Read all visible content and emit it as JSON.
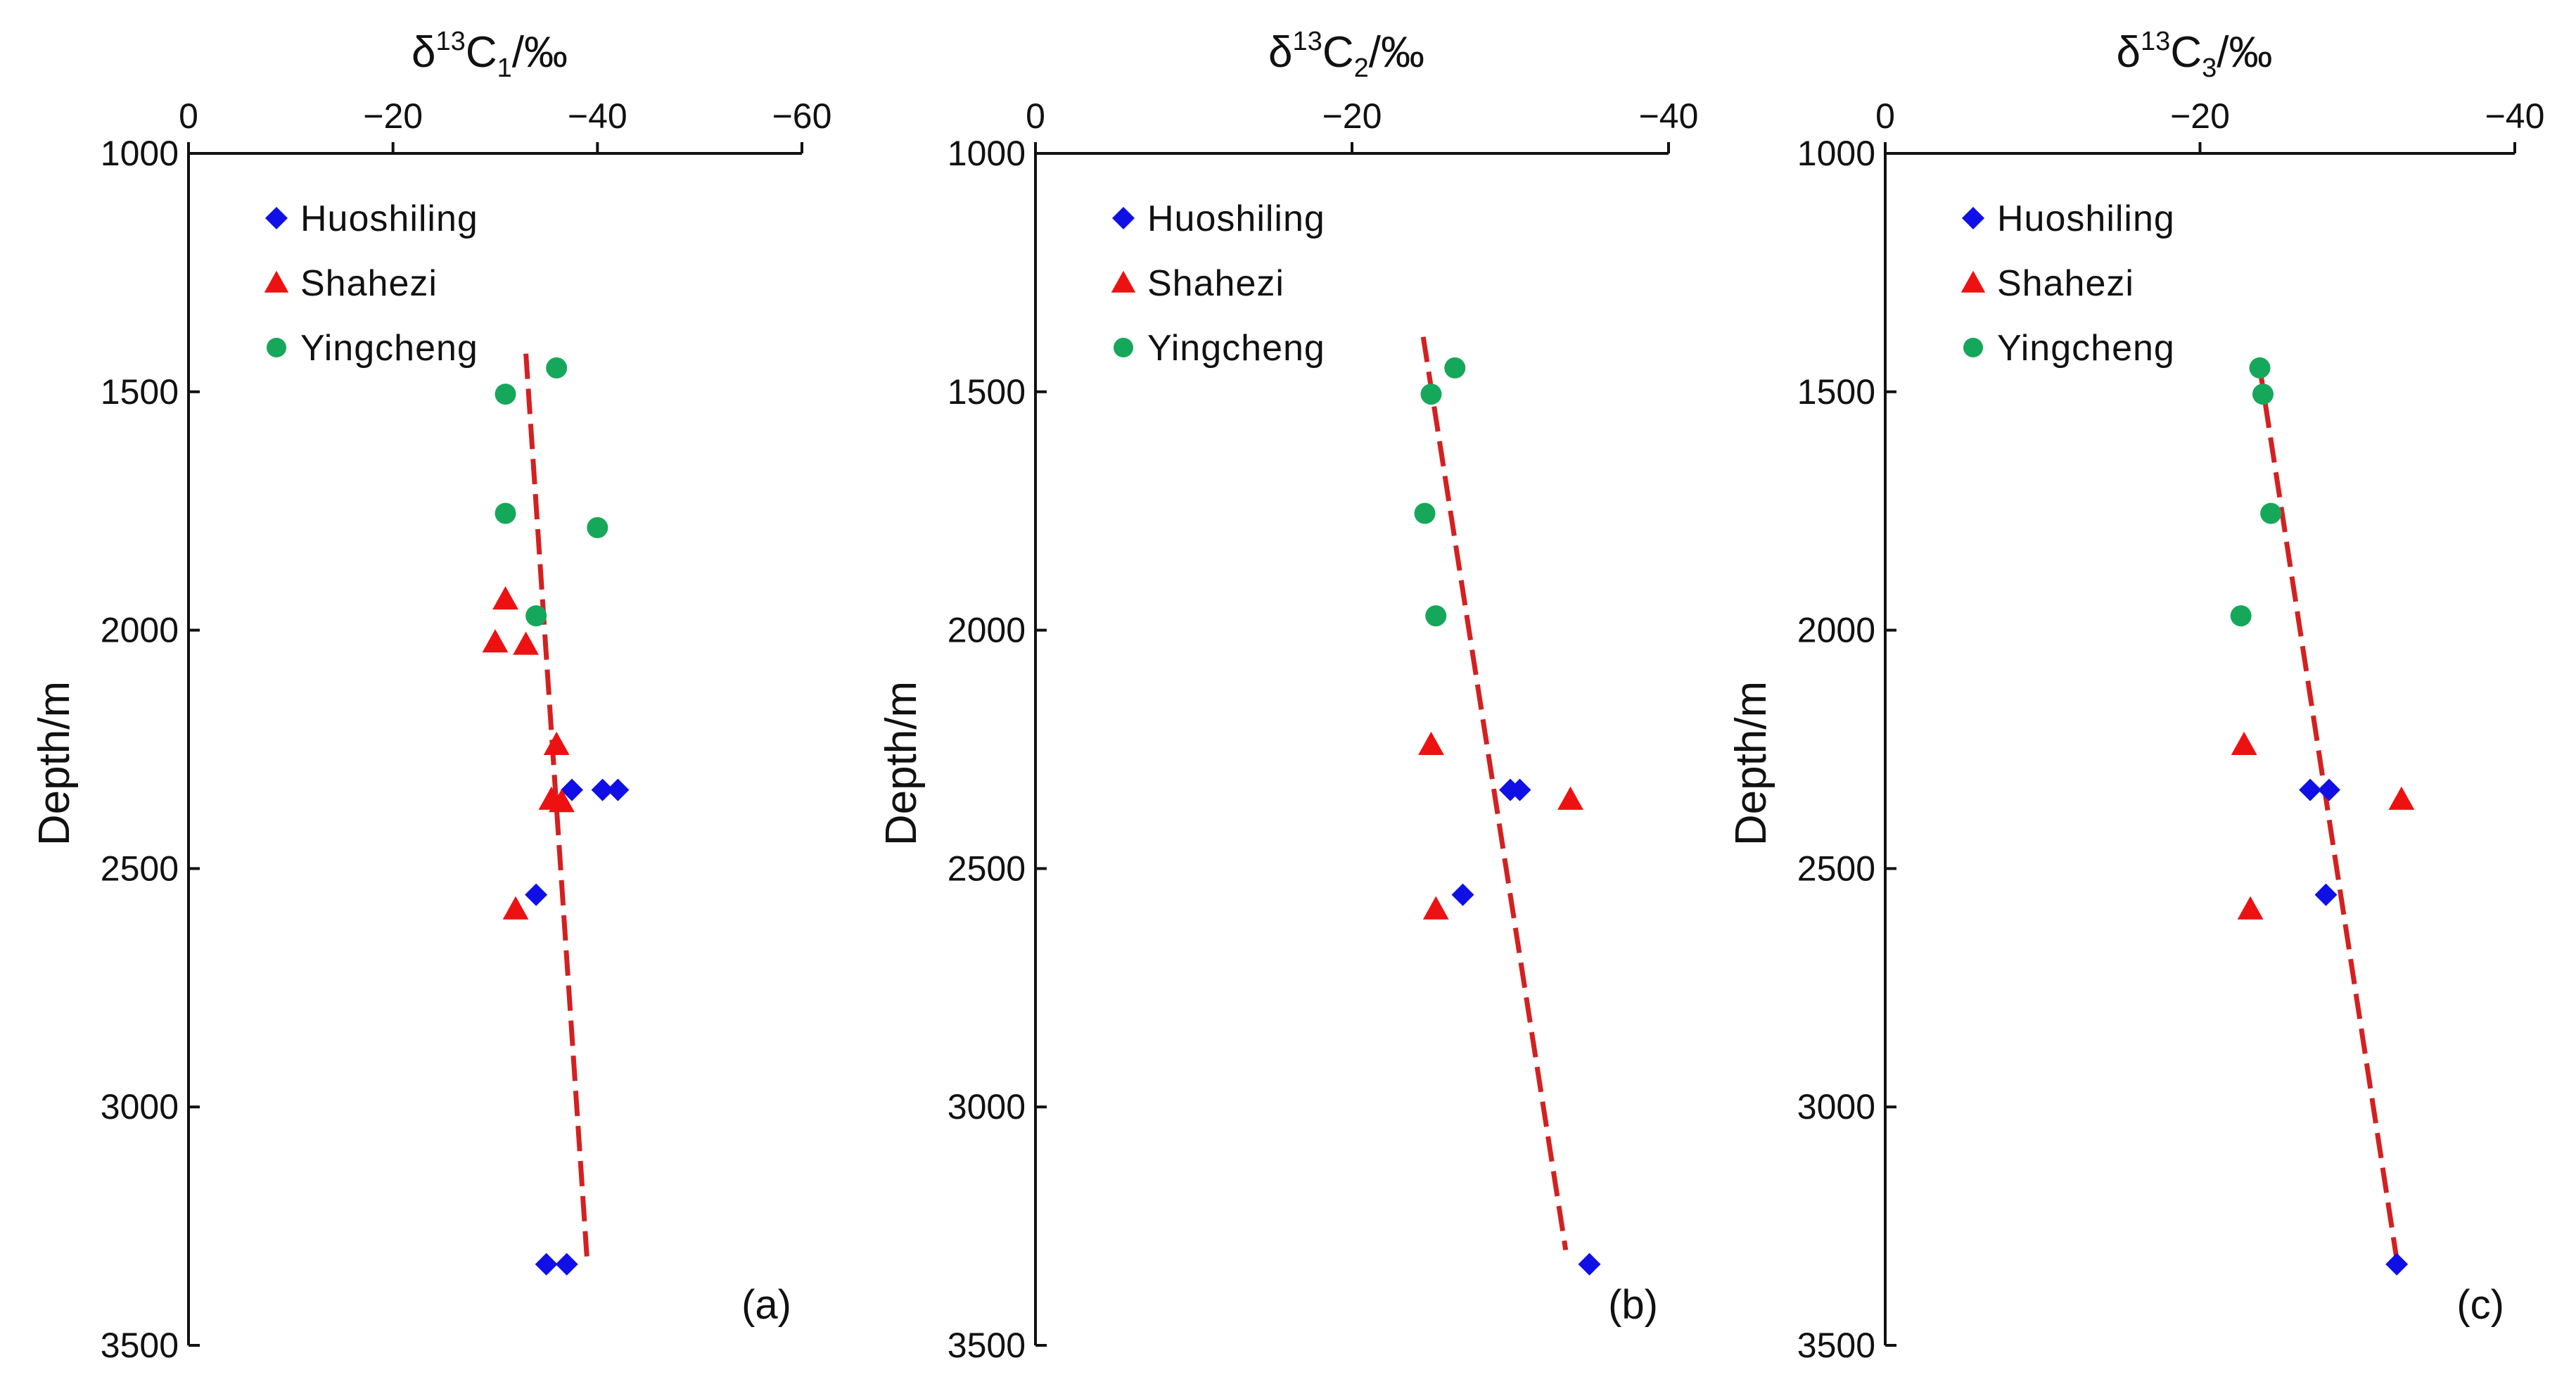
{
  "colors": {
    "Huoshiling": "#1010e6",
    "Shahezi": "#ee1111",
    "Yingcheng": "#16a85a",
    "trend": "#d42020",
    "axis": "#111111"
  },
  "chart_data": [
    {
      "type": "scatter",
      "panel_label": "(a)",
      "title_base": "δ",
      "title_sup": "13",
      "title_mid": "C",
      "title_sub": "1",
      "title_unit": "/‰",
      "ylabel": "Depth/m",
      "xlim": [
        0,
        -60
      ],
      "ylim": [
        1000,
        3500
      ],
      "xticks": [
        0,
        -20,
        -40,
        -60
      ],
      "xtick_labels": [
        "0",
        "−20",
        "−40",
        "−60"
      ],
      "yticks": [
        1000,
        1500,
        2000,
        2500,
        3000,
        3500
      ],
      "ytick_labels": [
        "1000",
        "1500",
        "2000",
        "2500",
        "3000",
        "3500"
      ],
      "legend": [
        "Huoshiling",
        "Shahezi",
        "Yingcheng"
      ],
      "series": [
        {
          "name": "Huoshiling",
          "marker": "diamond",
          "points": [
            [
              -37.5,
              2335
            ],
            [
              -40.5,
              2335
            ],
            [
              -42,
              2335
            ],
            [
              -34,
              2555
            ],
            [
              -35,
              3330
            ],
            [
              -37,
              3330
            ]
          ]
        },
        {
          "name": "Shahezi",
          "marker": "triangle",
          "points": [
            [
              -31,
              1935
            ],
            [
              -30,
              2025
            ],
            [
              -33,
              2030
            ],
            [
              -36,
              2240
            ],
            [
              -35.5,
              2355
            ],
            [
              -36.5,
              2360
            ],
            [
              -32,
              2585
            ]
          ]
        },
        {
          "name": "Yingcheng",
          "marker": "circle",
          "points": [
            [
              -36,
              1450
            ],
            [
              -31,
              1505
            ],
            [
              -31,
              1755
            ],
            [
              -40,
              1785
            ],
            [
              -34,
              1970
            ]
          ]
        }
      ],
      "trendline": [
        [
          -33,
          1420
        ],
        [
          -39,
          3325
        ]
      ]
    },
    {
      "type": "scatter",
      "panel_label": "(b)",
      "title_base": "δ",
      "title_sup": "13",
      "title_mid": "C",
      "title_sub": "2",
      "title_unit": "/‰",
      "ylabel": "Depth/m",
      "xlim": [
        0,
        -40
      ],
      "ylim": [
        1000,
        3500
      ],
      "xticks": [
        0,
        -20,
        -40
      ],
      "xtick_labels": [
        "0",
        "−20",
        "−40"
      ],
      "yticks": [
        1000,
        1500,
        2000,
        2500,
        3000,
        3500
      ],
      "ytick_labels": [
        "1000",
        "1500",
        "2000",
        "2500",
        "3000",
        "3500"
      ],
      "legend": [
        "Huoshiling",
        "Shahezi",
        "Yingcheng"
      ],
      "series": [
        {
          "name": "Huoshiling",
          "marker": "diamond",
          "points": [
            [
              -30,
              2335
            ],
            [
              -30.6,
              2335
            ],
            [
              -27,
              2555
            ],
            [
              -35,
              3330
            ]
          ]
        },
        {
          "name": "Shahezi",
          "marker": "triangle",
          "points": [
            [
              -25,
              2240
            ],
            [
              -33.8,
              2355
            ],
            [
              -25.3,
              2585
            ]
          ]
        },
        {
          "name": "Yingcheng",
          "marker": "circle",
          "points": [
            [
              -26.5,
              1450
            ],
            [
              -25,
              1505
            ],
            [
              -24.6,
              1755
            ],
            [
              -25.3,
              1970
            ]
          ]
        }
      ],
      "trendline": [
        [
          -24.5,
          1385
        ],
        [
          -33.5,
          3300
        ]
      ]
    },
    {
      "type": "scatter",
      "panel_label": "(c)",
      "title_base": "δ",
      "title_sup": "13",
      "title_mid": "C",
      "title_sub": "3",
      "title_unit": "/‰",
      "ylabel": "Depth/m",
      "xlim": [
        0,
        -40
      ],
      "ylim": [
        1000,
        3500
      ],
      "xticks": [
        0,
        -20,
        -40
      ],
      "xtick_labels": [
        "0",
        "−20",
        "−40"
      ],
      "yticks": [
        1000,
        1500,
        2000,
        2500,
        3000,
        3500
      ],
      "ytick_labels": [
        "1000",
        "1500",
        "2000",
        "2500",
        "3000",
        "3500"
      ],
      "legend": [
        "Huoshiling",
        "Shahezi",
        "Yingcheng"
      ],
      "series": [
        {
          "name": "Huoshiling",
          "marker": "diamond",
          "points": [
            [
              -27,
              2335
            ],
            [
              -28.2,
              2335
            ],
            [
              -28,
              2555
            ],
            [
              -32.5,
              3330
            ]
          ]
        },
        {
          "name": "Shahezi",
          "marker": "triangle",
          "points": [
            [
              -22.8,
              2240
            ],
            [
              -32.8,
              2355
            ],
            [
              -23.2,
              2585
            ]
          ]
        },
        {
          "name": "Yingcheng",
          "marker": "circle",
          "points": [
            [
              -23.8,
              1450
            ],
            [
              -24,
              1505
            ],
            [
              -24.5,
              1755
            ],
            [
              -22.6,
              1970
            ]
          ]
        }
      ],
      "trendline": [
        [
          -23.8,
          1450
        ],
        [
          -32.5,
          3320
        ]
      ]
    }
  ]
}
